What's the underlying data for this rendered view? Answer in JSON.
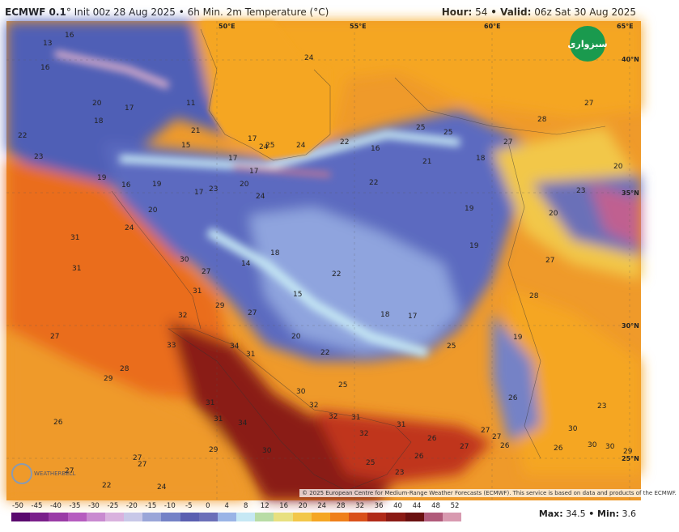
{
  "header": {
    "model": "ECMWF 0.1",
    "init": "° Init 00z 28 Aug 2025 • 6h Min. 2m Temperature (°C)",
    "hour_label": "Hour:",
    "hour_value": "54",
    "valid_label": "• Valid:",
    "valid_value": "06z Sat 30 Aug 2025"
  },
  "footer": {
    "max_label": "Max:",
    "max_value": "34.5",
    "min_label": "• Min:",
    "min_value": "3.6",
    "credit": "© 2025 European Centre for Medium-Range Weather Forecasts (ECMWF). This service is based on data and products of the ECMWF."
  },
  "colorbar": {
    "ticks": [
      "-50",
      "-45",
      "-40",
      "-35",
      "-30",
      "-25",
      "-20",
      "-15",
      "-10",
      "-5",
      "0",
      "4",
      "8",
      "12",
      "16",
      "20",
      "24",
      "28",
      "32",
      "36",
      "40",
      "44",
      "48",
      "52"
    ],
    "colors": [
      "#5a0a6e",
      "#7a1f8a",
      "#9a3ba6",
      "#b65cbf",
      "#c98ad0",
      "#d9b2de",
      "#c8c8e8",
      "#9aa6d8",
      "#7482c6",
      "#5a5fb0",
      "#6b6fb8",
      "#9ab4e6",
      "#c6e8f4",
      "#b8dca6",
      "#e8e080",
      "#f2c74a",
      "#f5a623",
      "#ef7f1a",
      "#d9501a",
      "#b02a18",
      "#8a1a14",
      "#6a1010",
      "#b05a7a",
      "#d89ab0"
    ]
  },
  "coordinates": [
    "50°E",
    "55°E",
    "60°E",
    "65°E",
    "40°N",
    "35°N",
    "30°N",
    "25°N"
  ],
  "logo_right": "سبزواری",
  "logo_left": "WEATHERBELL",
  "labels": [
    {
      "t": "13"
    },
    {
      "t": "16"
    },
    {
      "t": "16"
    },
    {
      "t": "11"
    },
    {
      "t": "24"
    },
    {
      "t": "20"
    },
    {
      "t": "17"
    },
    {
      "t": "18"
    },
    {
      "t": "21"
    },
    {
      "t": "22"
    },
    {
      "t": "15"
    },
    {
      "t": "17"
    },
    {
      "t": "24"
    },
    {
      "t": "25"
    },
    {
      "t": "24"
    },
    {
      "t": "22"
    },
    {
      "t": "16"
    },
    {
      "t": "25"
    },
    {
      "t": "25"
    },
    {
      "t": "27"
    },
    {
      "t": "28"
    },
    {
      "t": "27"
    },
    {
      "t": "23"
    },
    {
      "t": "19"
    },
    {
      "t": "16"
    },
    {
      "t": "17"
    },
    {
      "t": "17"
    },
    {
      "t": "20"
    },
    {
      "t": "23"
    },
    {
      "t": "19"
    },
    {
      "t": "21"
    },
    {
      "t": "18"
    },
    {
      "t": "20"
    },
    {
      "t": "17"
    },
    {
      "t": "22"
    },
    {
      "t": "24"
    },
    {
      "t": "24"
    },
    {
      "t": "20"
    },
    {
      "t": "31"
    },
    {
      "t": "31"
    },
    {
      "t": "30"
    },
    {
      "t": "27"
    },
    {
      "t": "14"
    },
    {
      "t": "18"
    },
    {
      "t": "22"
    },
    {
      "t": "19"
    },
    {
      "t": "19"
    },
    {
      "t": "20"
    },
    {
      "t": "23"
    },
    {
      "t": "31"
    },
    {
      "t": "15"
    },
    {
      "t": "29"
    },
    {
      "t": "32"
    },
    {
      "t": "27"
    },
    {
      "t": "18"
    },
    {
      "t": "17"
    },
    {
      "t": "28"
    },
    {
      "t": "27"
    },
    {
      "t": "33"
    },
    {
      "t": "34"
    },
    {
      "t": "31"
    },
    {
      "t": "20"
    },
    {
      "t": "22"
    },
    {
      "t": "25"
    },
    {
      "t": "19"
    },
    {
      "t": "28"
    },
    {
      "t": "27"
    },
    {
      "t": "29"
    },
    {
      "t": "30"
    },
    {
      "t": "25"
    },
    {
      "t": "26"
    },
    {
      "t": "31"
    },
    {
      "t": "31"
    },
    {
      "t": "32"
    },
    {
      "t": "32"
    },
    {
      "t": "31"
    },
    {
      "t": "23"
    },
    {
      "t": "26"
    },
    {
      "t": "34"
    },
    {
      "t": "32"
    },
    {
      "t": "31"
    },
    {
      "t": "30"
    },
    {
      "t": "29"
    },
    {
      "t": "27"
    },
    {
      "t": "27"
    },
    {
      "t": "27"
    },
    {
      "t": "25"
    },
    {
      "t": "26"
    },
    {
      "t": "26"
    },
    {
      "t": "30"
    },
    {
      "t": "30"
    },
    {
      "t": "30"
    },
    {
      "t": "29"
    },
    {
      "t": "23"
    },
    {
      "t": "27"
    },
    {
      "t": "27"
    },
    {
      "t": "27"
    },
    {
      "t": "26"
    },
    {
      "t": "26"
    },
    {
      "t": "22"
    },
    {
      "t": "24"
    }
  ]
}
